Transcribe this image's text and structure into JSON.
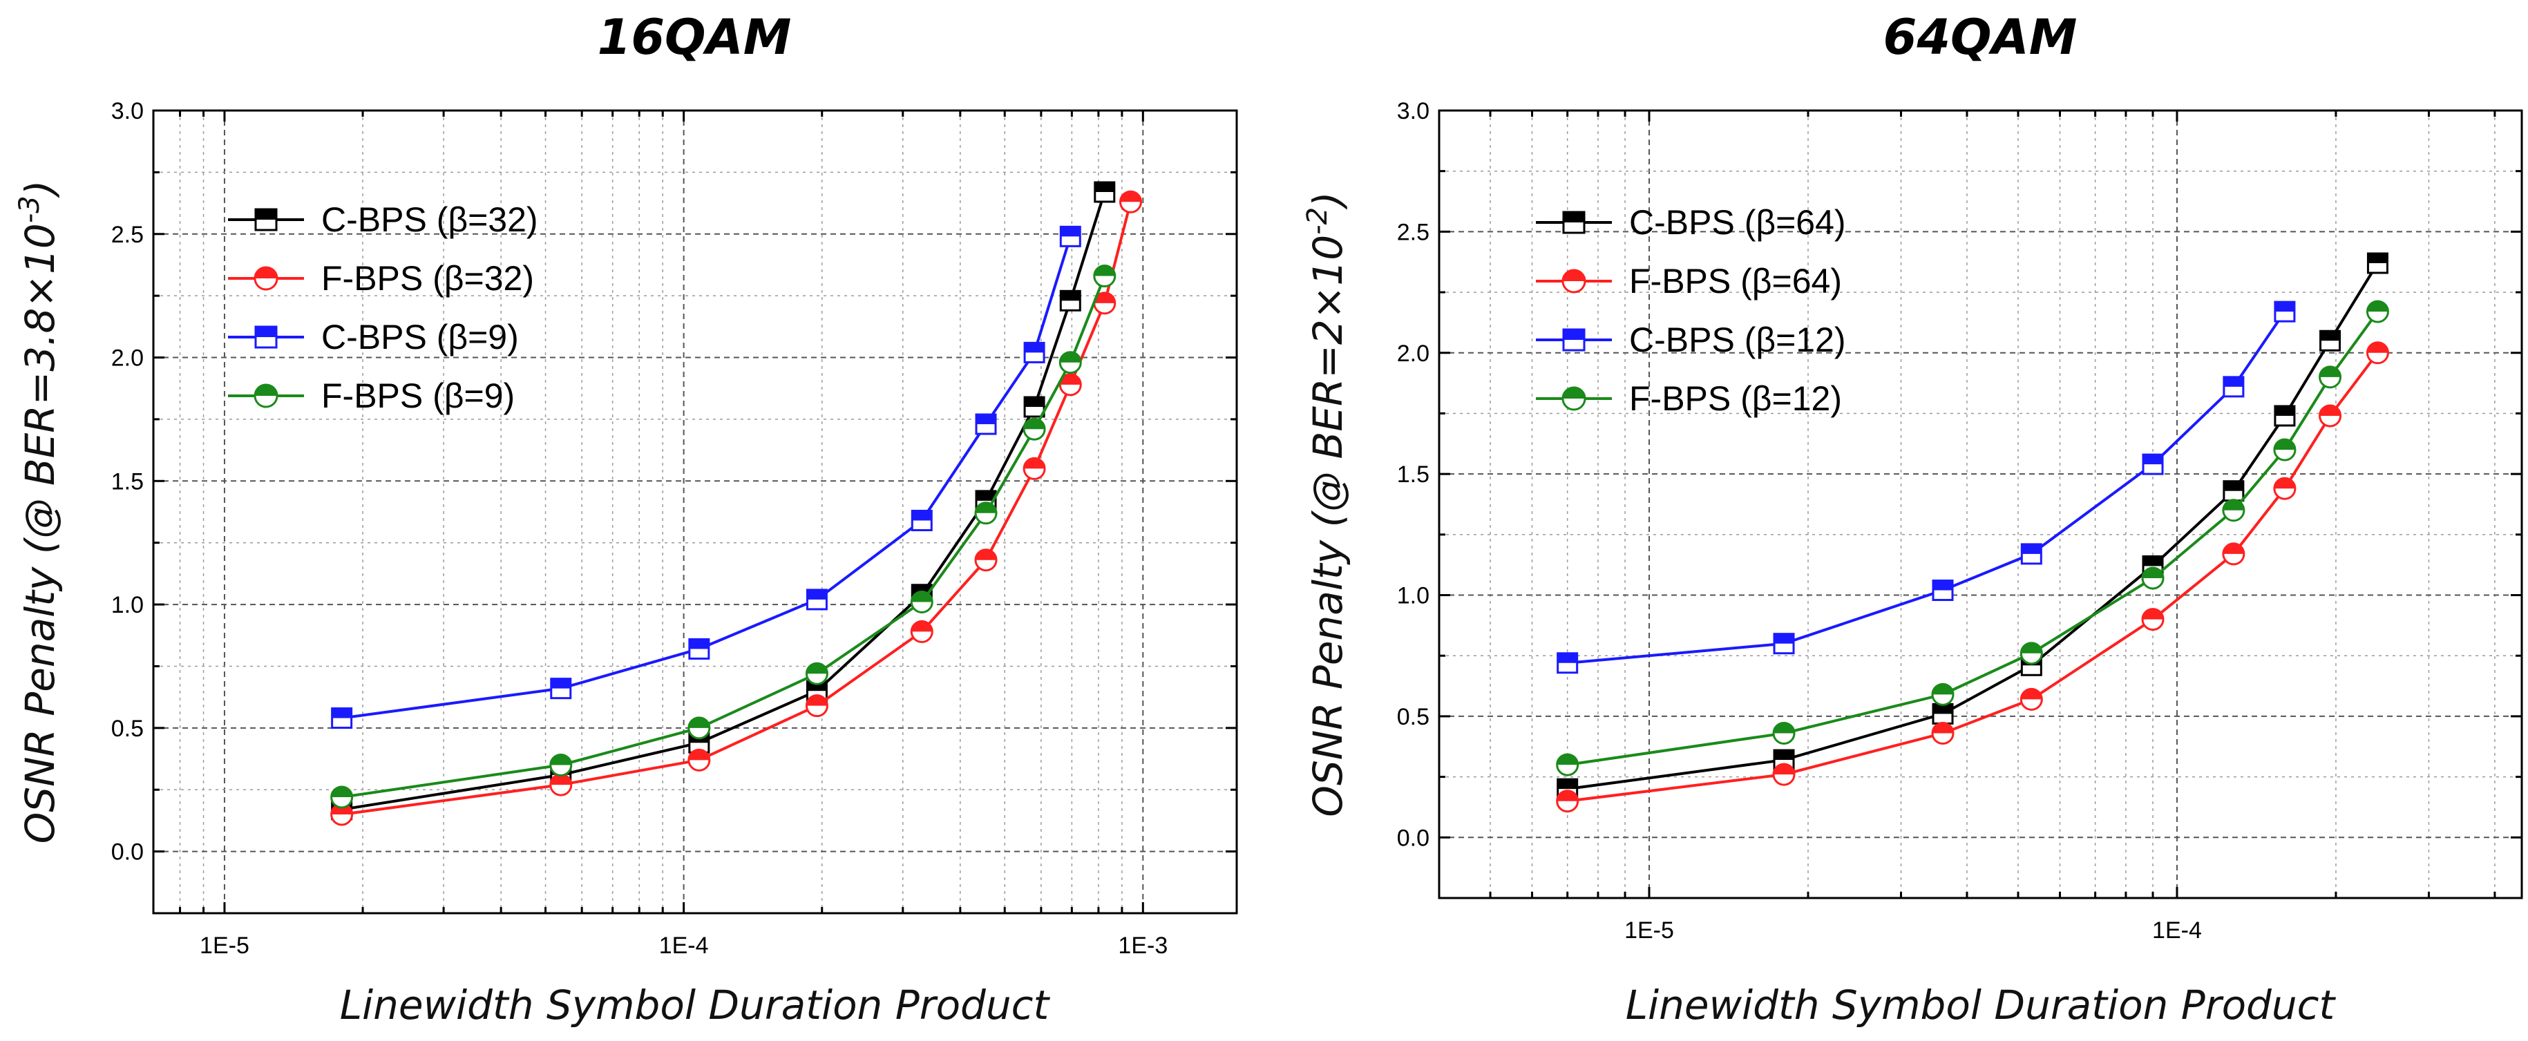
{
  "chart_data": [
    {
      "type": "line",
      "title": "16QAM",
      "xlabel": "Linewidth Symbol Duration Product",
      "ylabel": "OSNR Penalty (@ BER=3.8×10",
      "ylabel_exp": "-3",
      "ylabel_end": ")",
      "xscale": "log",
      "xlim": [
        7e-06,
        0.0016
      ],
      "ylim": [
        -0.25,
        3.0
      ],
      "yticks": [
        0.0,
        0.5,
        1.0,
        1.5,
        2.0,
        2.5,
        3.0
      ],
      "ytick_labels": [
        "0.0",
        "0.5",
        "1.0",
        "1.5",
        "2.0",
        "2.5",
        "3.0"
      ],
      "xticks": [
        1e-05,
        0.0001,
        0.001
      ],
      "xtick_labels": [
        "1E-5",
        "1E-4",
        "1E-3"
      ],
      "grid": true,
      "legend_position": "top-left",
      "series": [
        {
          "name": "C-BPS (β=32)",
          "color": "#000000",
          "marker": "square",
          "x": [
            1.8e-05,
            5.4e-05,
            0.000108,
            0.000195,
            0.00033,
            0.000455,
            0.00058,
            0.000695,
            0.000825
          ],
          "y": [
            0.17,
            0.31,
            0.44,
            0.65,
            1.04,
            1.42,
            1.8,
            2.23,
            2.67
          ]
        },
        {
          "name": "F-BPS (β=32)",
          "color": "#ff2020",
          "marker": "circle",
          "x": [
            1.8e-05,
            5.4e-05,
            0.000108,
            0.000195,
            0.00033,
            0.000455,
            0.00058,
            0.000695,
            0.000825,
            0.00094
          ],
          "y": [
            0.15,
            0.27,
            0.37,
            0.59,
            0.89,
            1.18,
            1.55,
            1.89,
            2.22,
            2.63
          ]
        },
        {
          "name": "C-BPS (β=9)",
          "color": "#1a1aff",
          "marker": "square",
          "x": [
            1.8e-05,
            5.4e-05,
            0.000108,
            0.000195,
            0.00033,
            0.000455,
            0.00058,
            0.000695
          ],
          "y": [
            0.54,
            0.66,
            0.82,
            1.02,
            1.34,
            1.73,
            2.02,
            2.49
          ]
        },
        {
          "name": "F-BPS (β=9)",
          "color": "#1a8a1a",
          "marker": "circle",
          "x": [
            1.8e-05,
            5.4e-05,
            0.000108,
            0.000195,
            0.00033,
            0.000455,
            0.00058,
            0.000695,
            0.000825
          ],
          "y": [
            0.22,
            0.35,
            0.5,
            0.72,
            1.01,
            1.37,
            1.71,
            1.98,
            2.33
          ]
        }
      ]
    },
    {
      "type": "line",
      "title": "64QAM",
      "xlabel": "Linewidth Symbol Duration Product",
      "ylabel": "OSNR Penalty (@ BER=2×10",
      "ylabel_exp": "-2",
      "ylabel_end": ")",
      "xscale": "log",
      "xlim": [
        4e-06,
        0.00045
      ],
      "ylim": [
        -0.25,
        3.0
      ],
      "yticks": [
        0.0,
        0.5,
        1.0,
        1.5,
        2.0,
        2.5,
        3.0
      ],
      "ytick_labels": [
        "0.0",
        "0.5",
        "1.0",
        "1.5",
        "2.0",
        "2.5",
        "3.0"
      ],
      "xticks": [
        1e-05,
        0.0001
      ],
      "xtick_labels": [
        "1E-5",
        "1E-4"
      ],
      "grid": true,
      "legend_position": "top-left",
      "series": [
        {
          "name": "C-BPS (β=64)",
          "color": "#000000",
          "marker": "square",
          "x": [
            7e-06,
            1.8e-05,
            3.6e-05,
            5.3e-05,
            9e-05,
            0.000128,
            0.00016,
            0.000195,
            0.00024
          ],
          "y": [
            0.2,
            0.32,
            0.51,
            0.71,
            1.12,
            1.43,
            1.74,
            2.05,
            2.37
          ]
        },
        {
          "name": "F-BPS (β=64)",
          "color": "#ff2020",
          "marker": "circle",
          "x": [
            7e-06,
            1.8e-05,
            3.6e-05,
            5.3e-05,
            9e-05,
            0.000128,
            0.00016,
            0.000195,
            0.00024
          ],
          "y": [
            0.15,
            0.26,
            0.43,
            0.57,
            0.9,
            1.17,
            1.44,
            1.74,
            2.0
          ]
        },
        {
          "name": "C-BPS (β=12)",
          "color": "#1a1aff",
          "marker": "square",
          "x": [
            7e-06,
            1.8e-05,
            3.6e-05,
            5.3e-05,
            9e-05,
            0.000128,
            0.00016
          ],
          "y": [
            0.72,
            0.8,
            1.02,
            1.17,
            1.54,
            1.86,
            2.17
          ]
        },
        {
          "name": "F-BPS (β=12)",
          "color": "#1a8a1a",
          "marker": "circle",
          "x": [
            7e-06,
            1.8e-05,
            3.6e-05,
            5.3e-05,
            9e-05,
            0.000128,
            0.00016,
            0.000195,
            0.00024
          ],
          "y": [
            0.3,
            0.43,
            0.59,
            0.76,
            1.07,
            1.35,
            1.6,
            1.9,
            2.17
          ]
        }
      ]
    }
  ]
}
